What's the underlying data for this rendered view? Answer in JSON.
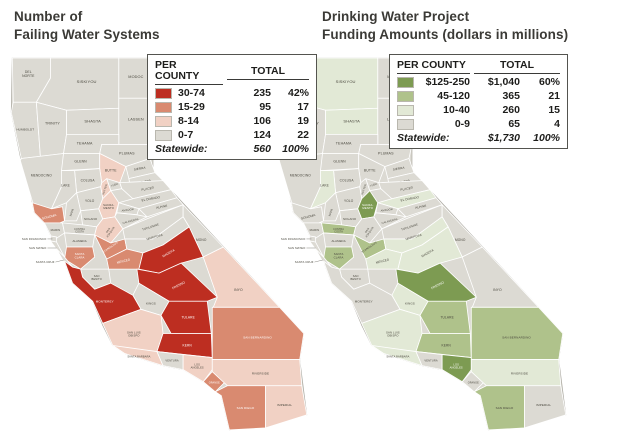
{
  "left": {
    "title": "Number of\nFailing Water Systems",
    "legend": {
      "per_county_label": "PER COUNTY",
      "total_label": "TOTAL",
      "rows": [
        {
          "range": "30-74",
          "total": "235",
          "pct": "42%"
        },
        {
          "range": "15-29",
          "total": "95",
          "pct": "17"
        },
        {
          "range": "8-14",
          "total": "106",
          "pct": "19"
        },
        {
          "range": "0-7",
          "total": "124",
          "pct": "22"
        }
      ],
      "statewide_label": "Statewide:",
      "statewide_total": "560",
      "statewide_pct": "100%"
    },
    "scale": [
      "#bd2e21",
      "#d98a70",
      "#f1d1c4",
      "#dcdad3"
    ],
    "label_white_max_category": 1
  },
  "right": {
    "title": "Drinking Water Project\nFunding Amounts (dollars in millions)",
    "legend": {
      "per_county_label": "PER COUNTY",
      "total_label": "TOTAL",
      "rows": [
        {
          "range": "$125-250",
          "total": "$1,040",
          "pct": "60%"
        },
        {
          "range": "45-120",
          "total": "365",
          "pct": "21"
        },
        {
          "range": "10-40",
          "total": "260",
          "pct": "15"
        },
        {
          "range": "0-9",
          "total": "65",
          "pct": "4"
        }
      ],
      "statewide_label": "Statewide:",
      "statewide_total": "$1,730",
      "statewide_pct": "100%"
    },
    "scale": [
      "#7d9b52",
      "#afc28b",
      "#e2e9d6",
      "#dcdad3"
    ],
    "label_white_max_category": 0
  },
  "counties": [
    {
      "id": "del-norte",
      "name": "DEL\nNORTE",
      "left_category": 3,
      "right_category": 3
    },
    {
      "id": "siskiyou",
      "name": "SISKIYOU",
      "left_category": 3,
      "right_category": 2
    },
    {
      "id": "modoc",
      "name": "MODOC",
      "left_category": 3,
      "right_category": 3
    },
    {
      "id": "humboldt",
      "name": "HUMBOLDT",
      "left_category": 3,
      "right_category": 3
    },
    {
      "id": "trinity",
      "name": "TRINITY",
      "left_category": 3,
      "right_category": 3
    },
    {
      "id": "shasta",
      "name": "SHASTA",
      "left_category": 3,
      "right_category": 2
    },
    {
      "id": "lassen",
      "name": "LASSEN",
      "left_category": 3,
      "right_category": 3
    },
    {
      "id": "tehama",
      "name": "TEHAMA",
      "left_category": 3,
      "right_category": 3
    },
    {
      "id": "plumas",
      "name": "PLUMAS",
      "left_category": 3,
      "right_category": 3
    },
    {
      "id": "mendocino",
      "name": "MENDOCINO",
      "left_category": 3,
      "right_category": 3
    },
    {
      "id": "glenn",
      "name": "GLENN",
      "left_category": 3,
      "right_category": 3
    },
    {
      "id": "butte",
      "name": "BUTTE",
      "left_category": 2,
      "right_category": 3
    },
    {
      "id": "sierra",
      "name": "SIERRA",
      "left_category": 3,
      "right_category": 3
    },
    {
      "id": "nevada",
      "name": "NEVADA",
      "left_category": 3,
      "right_category": 3
    },
    {
      "id": "yuba",
      "name": "YUBA",
      "left_category": 3,
      "right_category": 3
    },
    {
      "id": "sutter",
      "name": "SUTTER",
      "left_category": 2,
      "right_category": 3
    },
    {
      "id": "colusa",
      "name": "COLUSA",
      "left_category": 3,
      "right_category": 3
    },
    {
      "id": "lake",
      "name": "LAKE",
      "left_category": 3,
      "right_category": 2
    },
    {
      "id": "placer",
      "name": "PLACER",
      "left_category": 3,
      "right_category": 3
    },
    {
      "id": "el-dorado",
      "name": "EL DORADO",
      "left_category": 3,
      "right_category": 2
    },
    {
      "id": "yolo",
      "name": "YOLO",
      "left_category": 3,
      "right_category": 3
    },
    {
      "id": "sacramento",
      "name": "SACRA-\nMENTO",
      "left_category": 2,
      "right_category": 0
    },
    {
      "id": "amador",
      "name": "AMADOR",
      "left_category": 3,
      "right_category": 3
    },
    {
      "id": "alpine",
      "name": "ALPINE",
      "left_category": 3,
      "right_category": 3
    },
    {
      "id": "calaveras",
      "name": "CALAVERAS",
      "left_category": 3,
      "right_category": 3
    },
    {
      "id": "sonoma",
      "name": "SONOMA",
      "left_category": 1,
      "right_category": 3
    },
    {
      "id": "napa",
      "name": "NAPA",
      "left_category": 3,
      "right_category": 3
    },
    {
      "id": "solano",
      "name": "SOLANO",
      "left_category": 3,
      "right_category": 3
    },
    {
      "id": "marin",
      "name": "MARIN",
      "left_category": 3,
      "right_category": 3
    },
    {
      "id": "contra-costa",
      "name": "CONTRA\nCOSTA",
      "left_category": 3,
      "right_category": 1
    },
    {
      "id": "san-joaquin",
      "name": "SAN\nJOAQUIN",
      "left_category": 2,
      "right_category": 3
    },
    {
      "id": "san-francisco",
      "name": "SAN FRANCISCO",
      "left_category": 3,
      "right_category": 3
    },
    {
      "id": "alameda",
      "name": "ALAMEDA",
      "left_category": 3,
      "right_category": 3
    },
    {
      "id": "san-mateo",
      "name": "SAN MATEO",
      "left_category": 3,
      "right_category": 3
    },
    {
      "id": "santa-clara",
      "name": "SANTA\nCLARA",
      "left_category": 1,
      "right_category": 1
    },
    {
      "id": "santa-cruz",
      "name": "SANTA CRUZ",
      "left_category": 3,
      "right_category": 3
    },
    {
      "id": "stanislaus",
      "name": "STANISLAUS",
      "left_category": 1,
      "right_category": 1
    },
    {
      "id": "tuolumne",
      "name": "TUOLUMNE",
      "left_category": 3,
      "right_category": 3
    },
    {
      "id": "mono",
      "name": "MONO",
      "left_category": 3,
      "right_category": 3
    },
    {
      "id": "mariposa",
      "name": "MARIPOSA",
      "left_category": 3,
      "right_category": 2
    },
    {
      "id": "merced",
      "name": "MERCED",
      "left_category": 1,
      "right_category": 2
    },
    {
      "id": "madera",
      "name": "MADERA",
      "left_category": 0,
      "right_category": 2
    },
    {
      "id": "san-benito",
      "name": "SAN\nBENITO",
      "left_category": 3,
      "right_category": 3
    },
    {
      "id": "fresno",
      "name": "FRESNO",
      "left_category": 0,
      "right_category": 0
    },
    {
      "id": "kings",
      "name": "KINGS",
      "left_category": 3,
      "right_category": 2
    },
    {
      "id": "tulare",
      "name": "TULARE",
      "left_category": 0,
      "right_category": 1
    },
    {
      "id": "inyo",
      "name": "INYO",
      "left_category": 2,
      "right_category": 3
    },
    {
      "id": "monterey",
      "name": "MONTEREY",
      "left_category": 0,
      "right_category": 3
    },
    {
      "id": "san-luis-obispo",
      "name": "SAN LUIS\nOBISPO",
      "left_category": 2,
      "right_category": 2
    },
    {
      "id": "kern",
      "name": "KERN",
      "left_category": 0,
      "right_category": 1
    },
    {
      "id": "santa-barbara",
      "name": "SANTA BARBARA",
      "left_category": 2,
      "right_category": 2
    },
    {
      "id": "ventura",
      "name": "VENTURA",
      "left_category": 3,
      "right_category": 3
    },
    {
      "id": "los-angeles",
      "name": "LOS\nANGELES",
      "left_category": 2,
      "right_category": 0
    },
    {
      "id": "san-bernardino",
      "name": "SAN BERNARDINO",
      "left_category": 1,
      "right_category": 1
    },
    {
      "id": "orange",
      "name": "ORANGE",
      "left_category": 1,
      "right_category": 3
    },
    {
      "id": "riverside",
      "name": "RIVERSIDE",
      "left_category": 2,
      "right_category": 2
    },
    {
      "id": "san-diego",
      "name": "SAN DIEGO",
      "left_category": 1,
      "right_category": 1
    },
    {
      "id": "imperial",
      "name": "IMPERIAL",
      "left_category": 2,
      "right_category": 3
    }
  ]
}
